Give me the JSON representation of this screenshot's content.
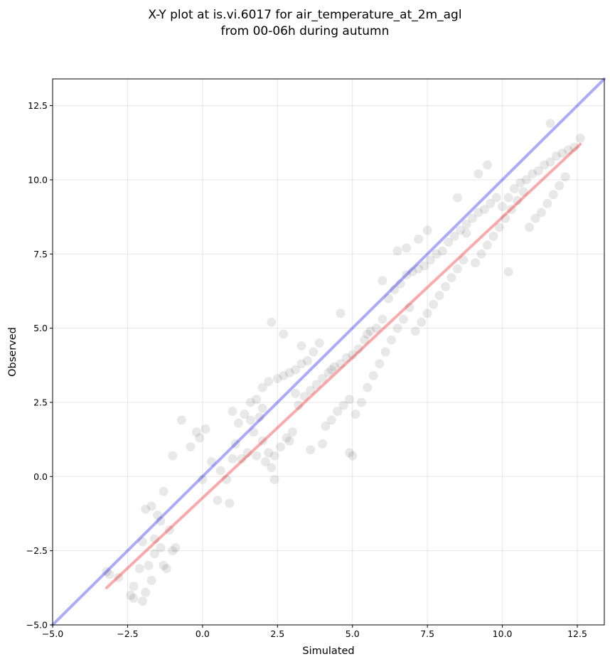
{
  "chart_data": {
    "type": "scatter",
    "title_lines": [
      "X-Y plot at is.vi.6017 for air_temperature_at_2m_agl",
      "from 00-06h during autumn"
    ],
    "xlabel": "Simulated",
    "ylabel": "Observed",
    "xlim": [
      -5.0,
      13.4
    ],
    "ylim": [
      -5.0,
      13.4
    ],
    "xticks": [
      -5.0,
      -2.5,
      0.0,
      2.5,
      5.0,
      7.5,
      10.0,
      12.5
    ],
    "yticks": [
      -5.0,
      -2.5,
      0.0,
      2.5,
      5.0,
      7.5,
      10.0,
      12.5
    ],
    "xtick_labels": [
      "−5.0",
      "−2.5",
      "0.0",
      "2.5",
      "5.0",
      "7.5",
      "10.0",
      "12.5"
    ],
    "ytick_labels": [
      "−5.0",
      "−2.5",
      "0.0",
      "2.5",
      "5.0",
      "7.5",
      "10.0",
      "12.5"
    ],
    "grid": true,
    "point_color": "#000000",
    "lines": [
      {
        "role": "identity",
        "color": "#0000ee",
        "x": [
          -5.0,
          13.4
        ],
        "y": [
          -5.0,
          13.4
        ]
      },
      {
        "role": "fit",
        "color": "#ee0000",
        "x": [
          -3.2,
          12.6
        ],
        "y": [
          -3.75,
          11.2
        ]
      }
    ],
    "points": {
      "x": [
        -3.2,
        -3.1,
        -2.8,
        -2.3,
        -2.4,
        -2.3,
        -2.0,
        -1.9,
        -2.1,
        -1.8,
        -1.7,
        -1.6,
        -1.4,
        -1.3,
        -1.2,
        -1.0,
        -0.9,
        -1.1,
        -1.4,
        -1.6,
        -2.0,
        -1.9,
        -1.7,
        -1.5,
        -1.3,
        -1.0,
        -0.7,
        -0.4,
        -0.2,
        0.0,
        0.1,
        -0.1,
        0.3,
        0.6,
        0.5,
        0.8,
        1.0,
        1.1,
        0.9,
        1.2,
        1.4,
        1.6,
        1.7,
        1.9,
        2.0,
        2.2,
        2.3,
        2.4,
        2.1,
        1.8,
        1.5,
        1.3,
        1.6,
        1.8,
        2.0,
        2.2,
        2.5,
        2.7,
        2.9,
        3.1,
        3.3,
        3.5,
        3.7,
        3.9,
        3.2,
        3.4,
        3.6,
        3.8,
        4.0,
        4.2,
        4.4,
        4.6,
        4.8,
        4.1,
        4.3,
        4.5,
        4.7,
        4.9,
        3.0,
        2.8,
        2.6,
        2.4,
        5.0,
        5.2,
        5.4,
        5.6,
        5.8,
        6.0,
        5.1,
        5.3,
        5.5,
        5.7,
        5.9,
        6.1,
        6.3,
        6.5,
        6.7,
        6.9,
        6.2,
        6.4,
        6.6,
        6.8,
        7.0,
        7.2,
        7.4,
        7.6,
        7.8,
        7.1,
        7.3,
        7.5,
        7.7,
        7.9,
        8.1,
        8.3,
        8.5,
        8.7,
        8.0,
        8.2,
        8.4,
        8.6,
        8.8,
        9.0,
        9.2,
        9.4,
        9.6,
        9.8,
        9.1,
        9.3,
        9.5,
        9.7,
        9.9,
        10.1,
        10.3,
        10.5,
        10.7,
        10.0,
        10.2,
        10.4,
        10.6,
        10.8,
        11.0,
        11.2,
        11.4,
        11.6,
        11.8,
        12.0,
        12.2,
        12.4,
        12.6,
        11.1,
        11.3,
        11.5,
        11.7,
        11.9,
        12.1,
        4.6,
        4.9,
        5.0,
        2.3,
        2.7,
        3.3,
        6.8,
        7.5,
        9.2,
        8.5,
        11.6,
        10.9,
        4.0,
        3.6,
        2.0,
        1.0,
        6.0,
        6.5,
        7.2,
        8.8,
        9.5,
        10.2,
        5.5,
        4.3,
        3.1,
        2.9
      ],
      "y": [
        -3.2,
        -3.3,
        -3.4,
        -3.7,
        -4.0,
        -4.1,
        -4.2,
        -3.9,
        -3.1,
        -3.0,
        -3.5,
        -2.6,
        -2.4,
        -3.0,
        -3.1,
        -2.5,
        -2.4,
        -1.8,
        -1.5,
        -2.1,
        -2.2,
        -1.1,
        -1.0,
        -1.3,
        -0.5,
        0.7,
        1.9,
        1.0,
        1.5,
        -0.1,
        1.6,
        1.3,
        0.5,
        0.2,
        -0.8,
        -0.1,
        0.6,
        1.1,
        -0.9,
        1.8,
        2.1,
        1.9,
        1.5,
        2.0,
        1.2,
        0.8,
        0.3,
        -0.1,
        0.5,
        0.7,
        0.8,
        0.6,
        2.5,
        2.6,
        3.0,
        3.2,
        3.3,
        3.4,
        3.5,
        3.6,
        3.8,
        3.9,
        4.2,
        4.5,
        2.4,
        2.7,
        2.9,
        3.1,
        3.3,
        3.5,
        3.7,
        3.8,
        4.0,
        1.7,
        1.9,
        2.2,
        2.4,
        2.6,
        1.5,
        1.3,
        1.0,
        0.7,
        4.1,
        4.3,
        4.6,
        4.9,
        5.0,
        5.3,
        2.1,
        2.5,
        3.0,
        3.4,
        3.8,
        4.2,
        4.6,
        5.0,
        5.3,
        5.7,
        6.0,
        6.3,
        6.5,
        6.8,
        6.9,
        7.0,
        7.1,
        7.3,
        7.5,
        4.9,
        5.2,
        5.5,
        5.8,
        6.1,
        6.4,
        6.7,
        7.0,
        7.3,
        7.6,
        7.9,
        8.1,
        8.3,
        8.5,
        8.7,
        8.9,
        9.0,
        9.2,
        9.4,
        7.2,
        7.5,
        7.8,
        8.1,
        8.4,
        8.7,
        9.0,
        9.3,
        9.6,
        9.1,
        9.4,
        9.7,
        9.9,
        10.0,
        10.2,
        10.3,
        10.5,
        10.6,
        10.8,
        10.9,
        11.0,
        11.1,
        11.4,
        8.7,
        8.9,
        9.2,
        9.5,
        9.8,
        10.1,
        5.5,
        0.8,
        0.7,
        5.2,
        4.8,
        4.4,
        7.7,
        8.3,
        10.2,
        9.4,
        11.9,
        8.4,
        1.1,
        0.9,
        2.3,
        2.2,
        6.6,
        7.6,
        8.0,
        8.2,
        10.5,
        6.9,
        4.8,
        3.6,
        2.8,
        1.2
      ]
    }
  }
}
